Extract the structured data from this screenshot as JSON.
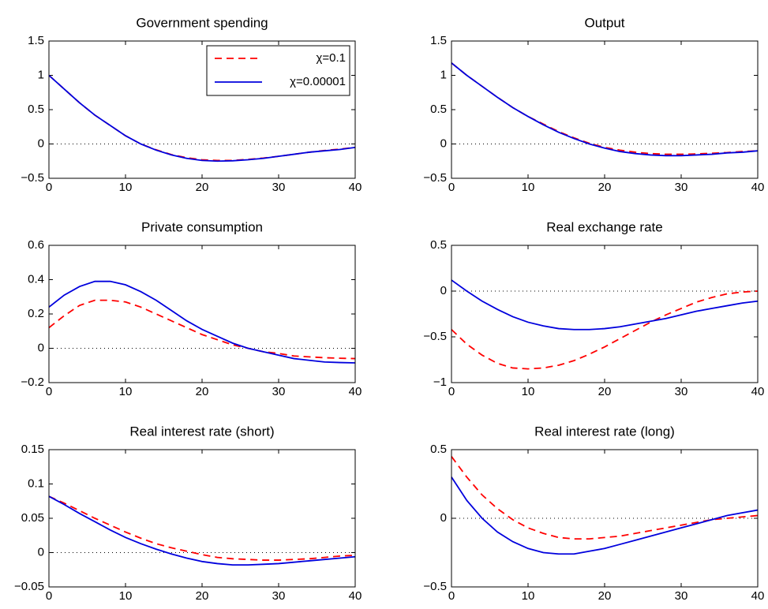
{
  "chart_data": [
    {
      "type": "line",
      "title": "Government spending",
      "x": [
        0,
        2,
        4,
        6,
        8,
        10,
        12,
        14,
        16,
        18,
        20,
        22,
        24,
        26,
        28,
        30,
        32,
        34,
        36,
        38,
        40
      ],
      "series": [
        {
          "name": "χ=0.1",
          "color": "#ff0000",
          "dash": true,
          "values": [
            1,
            0.8,
            0.6,
            0.42,
            0.27,
            0.12,
            0.0,
            -0.085,
            -0.155,
            -0.2,
            -0.23,
            -0.24,
            -0.24,
            -0.225,
            -0.205,
            -0.18,
            -0.15,
            -0.12,
            -0.095,
            -0.075,
            -0.05
          ]
        },
        {
          "name": "χ=0.00001",
          "color": "#0000dd",
          "dash": false,
          "values": [
            1,
            0.8,
            0.6,
            0.42,
            0.27,
            0.12,
            0.0,
            -0.09,
            -0.16,
            -0.21,
            -0.24,
            -0.25,
            -0.245,
            -0.23,
            -0.21,
            -0.18,
            -0.15,
            -0.12,
            -0.1,
            -0.08,
            -0.05
          ]
        }
      ],
      "xlim": [
        0,
        40
      ],
      "xticks": [
        0,
        10,
        20,
        30,
        40
      ],
      "ylim": [
        -0.5,
        1.5
      ],
      "yticks": [
        {
          "value": -0.5,
          "label": "−0.5"
        },
        0,
        0.5,
        1,
        1.5
      ],
      "zero_line": true,
      "legend": "upper right"
    },
    {
      "type": "line",
      "title": "Output",
      "x": [
        0,
        2,
        4,
        6,
        8,
        10,
        12,
        14,
        16,
        18,
        20,
        22,
        24,
        26,
        28,
        30,
        32,
        34,
        36,
        38,
        40
      ],
      "series": [
        {
          "color": "#ff0000",
          "dash": true,
          "values": [
            1.18,
            1.0,
            0.84,
            0.68,
            0.53,
            0.4,
            0.29,
            0.18,
            0.09,
            0.01,
            -0.05,
            -0.09,
            -0.12,
            -0.14,
            -0.15,
            -0.15,
            -0.145,
            -0.135,
            -0.125,
            -0.11,
            -0.1
          ]
        },
        {
          "color": "#0000dd",
          "dash": false,
          "values": [
            1.18,
            1.0,
            0.84,
            0.68,
            0.53,
            0.4,
            0.28,
            0.17,
            0.08,
            0.0,
            -0.06,
            -0.11,
            -0.14,
            -0.16,
            -0.17,
            -0.17,
            -0.16,
            -0.15,
            -0.13,
            -0.12,
            -0.1
          ]
        }
      ],
      "xlim": [
        0,
        40
      ],
      "xticks": [
        0,
        10,
        20,
        30,
        40
      ],
      "ylim": [
        -0.5,
        1.5
      ],
      "yticks": [
        {
          "value": -0.5,
          "label": "−0.5"
        },
        0,
        0.5,
        1,
        1.5
      ],
      "zero_line": true
    },
    {
      "type": "line",
      "title": "Private consumption",
      "x": [
        0,
        2,
        4,
        6,
        8,
        10,
        12,
        14,
        16,
        18,
        20,
        22,
        24,
        26,
        28,
        30,
        32,
        34,
        36,
        38,
        40
      ],
      "series": [
        {
          "color": "#ff0000",
          "dash": true,
          "values": [
            0.12,
            0.19,
            0.25,
            0.28,
            0.28,
            0.27,
            0.24,
            0.2,
            0.16,
            0.12,
            0.08,
            0.05,
            0.02,
            0.0,
            -0.02,
            -0.03,
            -0.045,
            -0.05,
            -0.055,
            -0.058,
            -0.06
          ]
        },
        {
          "color": "#0000dd",
          "dash": false,
          "values": [
            0.24,
            0.31,
            0.36,
            0.39,
            0.39,
            0.37,
            0.33,
            0.28,
            0.22,
            0.16,
            0.11,
            0.07,
            0.03,
            0.0,
            -0.02,
            -0.04,
            -0.06,
            -0.07,
            -0.08,
            -0.083,
            -0.085
          ]
        }
      ],
      "xlim": [
        0,
        40
      ],
      "xticks": [
        0,
        10,
        20,
        30,
        40
      ],
      "ylim": [
        -0.2,
        0.6
      ],
      "yticks": [
        {
          "value": -0.2,
          "label": "−0.2"
        },
        0,
        0.2,
        0.4,
        0.6
      ],
      "zero_line": true
    },
    {
      "type": "line",
      "title": "Real exchange rate",
      "x": [
        0,
        2,
        4,
        6,
        8,
        10,
        12,
        14,
        16,
        18,
        20,
        22,
        24,
        26,
        28,
        30,
        32,
        34,
        36,
        38,
        40
      ],
      "series": [
        {
          "color": "#ff0000",
          "dash": true,
          "values": [
            -0.42,
            -0.58,
            -0.7,
            -0.79,
            -0.84,
            -0.85,
            -0.84,
            -0.81,
            -0.76,
            -0.69,
            -0.61,
            -0.52,
            -0.43,
            -0.34,
            -0.26,
            -0.19,
            -0.12,
            -0.07,
            -0.03,
            -0.01,
            0.0
          ]
        },
        {
          "color": "#0000dd",
          "dash": false,
          "values": [
            0.12,
            0.0,
            -0.11,
            -0.2,
            -0.28,
            -0.34,
            -0.38,
            -0.41,
            -0.42,
            -0.42,
            -0.41,
            -0.39,
            -0.36,
            -0.33,
            -0.3,
            -0.26,
            -0.22,
            -0.19,
            -0.16,
            -0.13,
            -0.11
          ]
        }
      ],
      "xlim": [
        0,
        40
      ],
      "xticks": [
        0,
        10,
        20,
        30,
        40
      ],
      "ylim": [
        -1,
        0.5
      ],
      "yticks": [
        {
          "value": -1,
          "label": "−1"
        },
        {
          "value": -0.5,
          "label": "−0.5"
        },
        0,
        0.5
      ],
      "zero_line": true
    },
    {
      "type": "line",
      "title": "Real interest rate (short)",
      "x": [
        0,
        2,
        4,
        6,
        8,
        10,
        12,
        14,
        16,
        18,
        20,
        22,
        24,
        26,
        28,
        30,
        32,
        34,
        36,
        38,
        40
      ],
      "series": [
        {
          "color": "#ff0000",
          "dash": true,
          "values": [
            0.082,
            0.072,
            0.061,
            0.05,
            0.04,
            0.03,
            0.021,
            0.013,
            0.007,
            0.002,
            -0.003,
            -0.007,
            -0.009,
            -0.01,
            -0.011,
            -0.011,
            -0.01,
            -0.009,
            -0.007,
            -0.005,
            -0.004
          ]
        },
        {
          "color": "#0000dd",
          "dash": false,
          "values": [
            0.082,
            0.07,
            0.057,
            0.045,
            0.033,
            0.022,
            0.013,
            0.005,
            -0.002,
            -0.008,
            -0.013,
            -0.016,
            -0.018,
            -0.018,
            -0.017,
            -0.016,
            -0.014,
            -0.012,
            -0.01,
            -0.008,
            -0.006
          ]
        }
      ],
      "xlim": [
        0,
        40
      ],
      "xticks": [
        0,
        10,
        20,
        30,
        40
      ],
      "ylim": [
        -0.05,
        0.15
      ],
      "yticks": [
        {
          "value": -0.05,
          "label": "−0.05"
        },
        0,
        0.05,
        0.1,
        0.15
      ],
      "zero_line": true
    },
    {
      "type": "line",
      "title": "Real interest rate (long)",
      "x": [
        0,
        2,
        4,
        6,
        8,
        10,
        12,
        14,
        16,
        18,
        20,
        22,
        24,
        26,
        28,
        30,
        32,
        34,
        36,
        38,
        40
      ],
      "series": [
        {
          "color": "#ff0000",
          "dash": true,
          "values": [
            0.45,
            0.3,
            0.17,
            0.07,
            -0.01,
            -0.07,
            -0.11,
            -0.14,
            -0.15,
            -0.15,
            -0.14,
            -0.13,
            -0.11,
            -0.09,
            -0.07,
            -0.05,
            -0.03,
            -0.01,
            0.0,
            0.01,
            0.02
          ]
        },
        {
          "color": "#0000dd",
          "dash": false,
          "values": [
            0.3,
            0.13,
            0.0,
            -0.1,
            -0.17,
            -0.22,
            -0.25,
            -0.26,
            -0.26,
            -0.24,
            -0.22,
            -0.19,
            -0.16,
            -0.13,
            -0.1,
            -0.07,
            -0.04,
            -0.01,
            0.02,
            0.04,
            0.06
          ]
        }
      ],
      "xlim": [
        0,
        40
      ],
      "xticks": [
        0,
        10,
        20,
        30,
        40
      ],
      "ylim": [
        -0.5,
        0.5
      ],
      "yticks": [
        {
          "value": -0.5,
          "label": "−0.5"
        },
        0,
        0.5
      ],
      "zero_line": true
    }
  ]
}
